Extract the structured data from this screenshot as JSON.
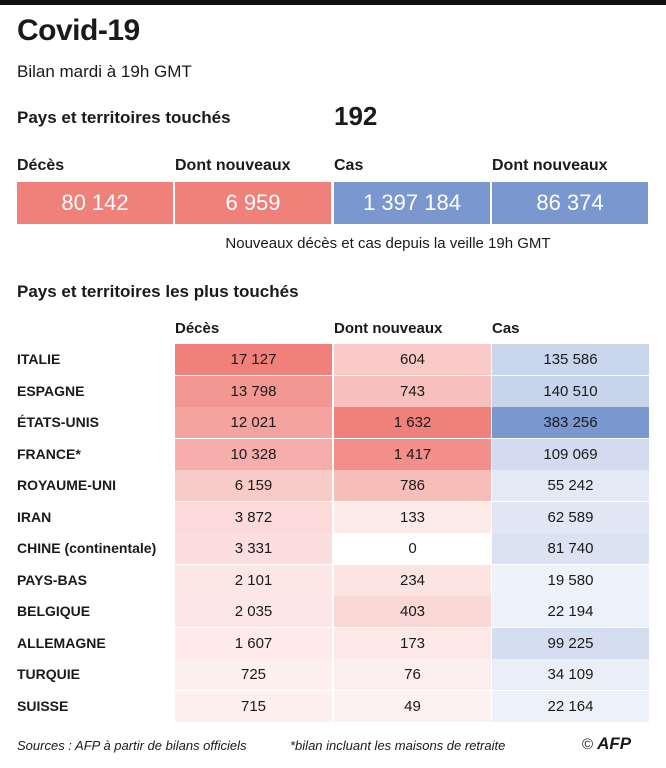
{
  "title": "Covid-19",
  "subtitle": "Bilan mardi à 19h GMT",
  "pays_touches": {
    "label": "Pays et territoires touchés",
    "value": "192"
  },
  "stats": [
    {
      "label": "Décès",
      "value": "80 142",
      "color": "#f0807a"
    },
    {
      "label": "Dont nouveaux",
      "value": "6 959",
      "color": "#f0807a"
    },
    {
      "label": "Cas",
      "value": "1 397 184",
      "color": "#7b97cf"
    },
    {
      "label": "Dont nouveaux",
      "value": "86 374",
      "color": "#7b97cf"
    }
  ],
  "stats_note": "Nouveaux décès et cas depuis la veille 19h GMT",
  "section_title": "Pays et territoires les plus touchés",
  "chart_data": {
    "type": "table",
    "columns": [
      "Décès",
      "Dont nouveaux",
      "Cas"
    ],
    "rows": [
      {
        "country": "ITALIE",
        "deces": 17127,
        "nouveaux": 604,
        "cas": 135586,
        "deces_label": "17 127",
        "nouveaux_label": "604",
        "cas_label": "135 586"
      },
      {
        "country": "ESPAGNE",
        "deces": 13798,
        "nouveaux": 743,
        "cas": 140510,
        "deces_label": "13 798",
        "nouveaux_label": "743",
        "cas_label": "140 510"
      },
      {
        "country": "ÉTATS-UNIS",
        "deces": 12021,
        "nouveaux": 1632,
        "cas": 383256,
        "deces_label": "12 021",
        "nouveaux_label": "1 632",
        "cas_label": "383 256"
      },
      {
        "country": "FRANCE*",
        "deces": 10328,
        "nouveaux": 1417,
        "cas": 109069,
        "deces_label": "10 328",
        "nouveaux_label": "1 417",
        "cas_label": "109 069"
      },
      {
        "country": "ROYAUME-UNI",
        "deces": 6159,
        "nouveaux": 786,
        "cas": 55242,
        "deces_label": "6 159",
        "nouveaux_label": "786",
        "cas_label": "55 242"
      },
      {
        "country": "IRAN",
        "deces": 3872,
        "nouveaux": 133,
        "cas": 62589,
        "deces_label": "3 872",
        "nouveaux_label": "133",
        "cas_label": "62 589"
      },
      {
        "country": "CHINE (continentale)",
        "deces": 3331,
        "nouveaux": 0,
        "cas": 81740,
        "deces_label": "3 331",
        "nouveaux_label": "0",
        "cas_label": "81 740"
      },
      {
        "country": "PAYS-BAS",
        "deces": 2101,
        "nouveaux": 234,
        "cas": 19580,
        "deces_label": "2 101",
        "nouveaux_label": "234",
        "cas_label": "19 580"
      },
      {
        "country": "BELGIQUE",
        "deces": 2035,
        "nouveaux": 403,
        "cas": 22194,
        "deces_label": "2 035",
        "nouveaux_label": "403",
        "cas_label": "22 194"
      },
      {
        "country": "ALLEMAGNE",
        "deces": 1607,
        "nouveaux": 173,
        "cas": 99225,
        "deces_label": "1 607",
        "nouveaux_label": "173",
        "cas_label": "99 225"
      },
      {
        "country": "TURQUIE",
        "deces": 725,
        "nouveaux": 76,
        "cas": 34109,
        "deces_label": "725",
        "nouveaux_label": "76",
        "cas_label": "34 109"
      },
      {
        "country": "SUISSE",
        "deces": 715,
        "nouveaux": 49,
        "cas": 22164,
        "deces_label": "715",
        "nouveaux_label": "49",
        "cas_label": "22 164"
      }
    ],
    "colors": {
      "red": "#f0807a",
      "blue": "#7b97cf"
    }
  },
  "footer": {
    "source": "Sources : AFP à partir de bilans officiels",
    "footnote": "*bilan incluant les maisons de retraite",
    "copyright_symbol": "©",
    "logo": "AFP"
  }
}
